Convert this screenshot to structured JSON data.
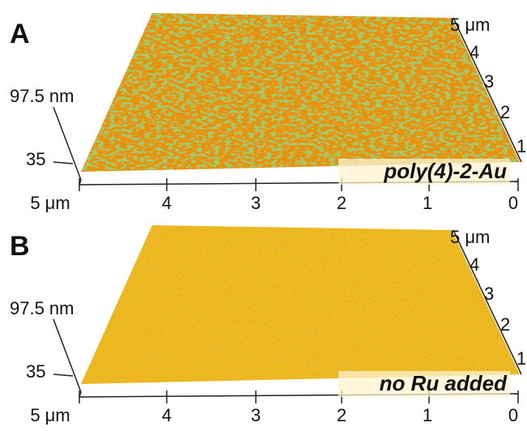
{
  "panels": [
    {
      "label": "A",
      "z_max": "97.5 nm",
      "z_min": "35",
      "front_ticks": [
        "5 μm",
        "4",
        "3",
        "2",
        "1",
        "0"
      ],
      "side_ticks": [
        "5 μm",
        "4",
        "3",
        "2",
        "1"
      ],
      "caption": "poly(4)-2-Au"
    },
    {
      "label": "B",
      "z_max": "97.5 nm",
      "z_min": "35",
      "front_ticks": [
        "5 μm",
        "4",
        "3",
        "2",
        "1",
        "0"
      ],
      "side_ticks": [
        "5 μm",
        "4",
        "3",
        "2",
        "1"
      ],
      "caption": "no Ru added"
    }
  ]
}
